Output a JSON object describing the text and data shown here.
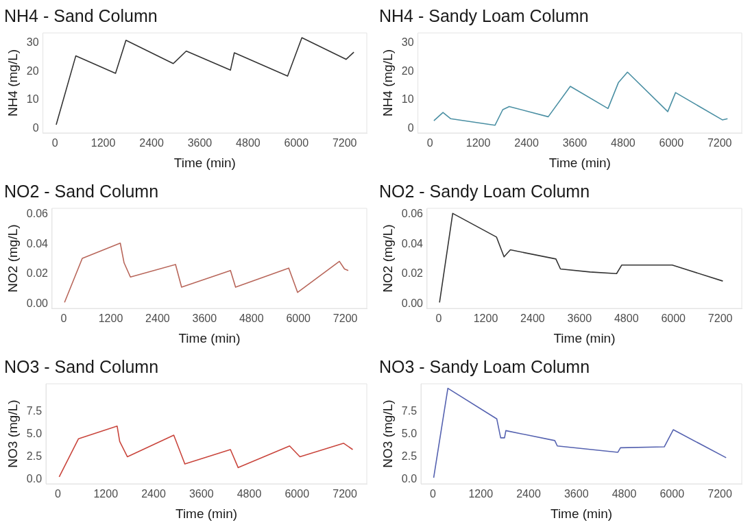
{
  "chart_data": [
    {
      "type": "line",
      "title": "NH4 - Sand Column",
      "xlabel": "Time (min)",
      "ylabel": "NH4 (mg/L)",
      "marker": "none",
      "xlim": [
        -300,
        7750
      ],
      "xticks": [
        0,
        1200,
        2400,
        3600,
        4800,
        6000,
        7200
      ],
      "ylim": [
        -1.6,
        33.6
      ],
      "yticks": [
        0,
        10,
        20,
        30
      ],
      "series": [
        {
          "color": "#333333",
          "x": [
            30,
            517,
            1505,
            1764,
            2940,
            3263,
            4361,
            4458,
            5782,
            6137,
            7235,
            7429
          ],
          "values": [
            1.3,
            25.5,
            19.4,
            31,
            22.8,
            27.2,
            20.5,
            26.6,
            18.4,
            31.9,
            24.3,
            26.8
          ]
        }
      ]
    },
    {
      "type": "line",
      "title": "NH4 - Sandy Loam Column",
      "xlabel": "Time (min)",
      "ylabel": "NH4 (mg/L)",
      "marker": "none",
      "xlim": [
        -300,
        7750
      ],
      "xticks": [
        0,
        1200,
        2400,
        3600,
        4800,
        6000,
        7200
      ],
      "ylim": [
        -1.6,
        33.6
      ],
      "yticks": [
        0,
        10,
        20,
        30
      ],
      "series": [
        {
          "color": "#4a8fa3",
          "x": [
            97,
            323,
            517,
            1615,
            1809,
            1970,
            2939,
            3488,
            4425,
            4683,
            4909,
            5910,
            6104,
            7267,
            7396
          ],
          "values": [
            2.7,
            5.6,
            3.4,
            1.1,
            6.6,
            7.7,
            4.1,
            14.8,
            7,
            16.1,
            19.8,
            5.9,
            12.6,
            3,
            3.4
          ]
        }
      ]
    },
    {
      "type": "line",
      "title": "NO2 - Sand Column",
      "xlabel": "Time (min)",
      "ylabel": "NO2 (mg/L)",
      "marker": "none",
      "xlim": [
        -300,
        7750
      ],
      "xticks": [
        0,
        1200,
        2400,
        3600,
        4800,
        6000,
        7200
      ],
      "ylim": [
        -0.003,
        0.064
      ],
      "yticks": [
        {
          "value": 0,
          "label": "0.00"
        },
        {
          "value": 0.02,
          "label": "0.02"
        },
        {
          "value": 0.04,
          "label": "0.04"
        },
        {
          "value": 0.06,
          "label": "0.06"
        }
      ],
      "series": [
        {
          "color": "#b8665a",
          "x": [
            19,
            473,
            1445,
            1542,
            1704,
            2858,
            3013,
            4264,
            4394,
            5754,
            5981,
            7050,
            7180,
            7277
          ],
          "values": [
            0.001,
            0.0305,
            0.0407,
            0.0275,
            0.018,
            0.0264,
            0.0112,
            0.0224,
            0.0112,
            0.024,
            0.0077,
            0.0285,
            0.0234,
            0.0224
          ]
        }
      ]
    },
    {
      "type": "line",
      "title": "NO2 - Sandy Loam Column",
      "xlabel": "Time (min)",
      "ylabel": "NO2 (mg/L)",
      "marker": "none",
      "xlim": [
        -300,
        7750
      ],
      "xticks": [
        0,
        1200,
        2400,
        3600,
        4800,
        6000,
        7200
      ],
      "ylim": [
        -0.003,
        0.064
      ],
      "yticks": [
        {
          "value": 0,
          "label": "0.00"
        },
        {
          "value": 0.02,
          "label": "0.02"
        },
        {
          "value": 0.04,
          "label": "0.04"
        },
        {
          "value": 0.06,
          "label": "0.06"
        }
      ],
      "series": [
        {
          "color": "#333333",
          "x": [
            19,
            356,
            1475,
            1669,
            1831,
            2995,
            3112,
            3869,
            4548,
            4678,
            5971,
            7265
          ],
          "values": [
            0.001,
            0.0606,
            0.0448,
            0.0315,
            0.0362,
            0.0301,
            0.0234,
            0.0214,
            0.0203,
            0.026,
            0.026,
            0.0153
          ]
        }
      ]
    },
    {
      "type": "line",
      "title": "NO3 - Sand Column",
      "xlabel": "Time (min)",
      "ylabel": "NO3 (mg/L)",
      "marker": "none",
      "xlim": [
        -300,
        7750
      ],
      "xticks": [
        0,
        1200,
        2400,
        3600,
        4800,
        6000,
        7200
      ],
      "ylim": [
        -0.5,
        10.6
      ],
      "yticks": [
        {
          "value": 0,
          "label": "0.0"
        },
        2.5,
        {
          "value": 5,
          "label": "5.0"
        },
        7.5
      ],
      "series": [
        {
          "color": "#c9453c",
          "x": [
            32,
            517,
            1486,
            1550,
            1744,
            2907,
            3185,
            4329,
            4523,
            5814,
            6073,
            7171,
            7397
          ],
          "values": [
            0.27,
            4.5,
            5.9,
            4.2,
            2.5,
            4.9,
            1.7,
            3.3,
            1.3,
            3.7,
            2.5,
            4.0,
            3.3
          ]
        }
      ]
    },
    {
      "type": "line",
      "title": "NO3 - Sandy Loam Column",
      "xlabel": "Time (min)",
      "ylabel": "NO3 (mg/L)",
      "marker": "none",
      "xlim": [
        -300,
        7750
      ],
      "xticks": [
        0,
        1200,
        2400,
        3600,
        4800,
        6000,
        7200
      ],
      "ylim": [
        -0.5,
        10.6
      ],
      "yticks": [
        {
          "value": 0,
          "label": "0.0"
        },
        2.5,
        {
          "value": 5,
          "label": "5.0"
        },
        7.5
      ],
      "series": [
        {
          "color": "#5562b0",
          "x": [
            19,
            375,
            1603,
            1700,
            1797,
            1830,
            3058,
            3122,
            4641,
            4706,
            5805,
            6031,
            7357
          ],
          "values": [
            0.17,
            10.1,
            6.7,
            4.6,
            4.6,
            5.4,
            4.3,
            3.7,
            3.0,
            3.5,
            3.6,
            5.5,
            2.4
          ]
        }
      ]
    }
  ]
}
